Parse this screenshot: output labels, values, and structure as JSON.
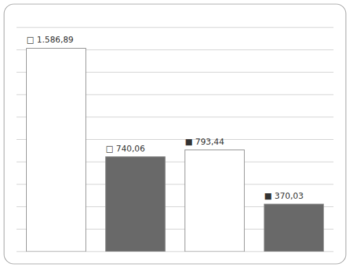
{
  "chart_data": {
    "type": "bar",
    "categories": [
      null,
      null,
      null,
      null
    ],
    "values": [
      1586.89,
      740.06,
      793.44,
      370.03
    ],
    "value_labels": [
      "□ 1.586,89",
      "□ 740,06",
      "■ 793,44",
      "■ 370,03"
    ],
    "colors": [
      "#ffffff",
      "#696969",
      "#ffffff",
      "#696969"
    ],
    "data_labels": true,
    "ylim": [
      0,
      1750
    ],
    "yticks": [
      0,
      175,
      350,
      525,
      700,
      875,
      1050,
      1225,
      1400,
      1575,
      1750
    ],
    "grid": true,
    "tick_labels": false
  }
}
